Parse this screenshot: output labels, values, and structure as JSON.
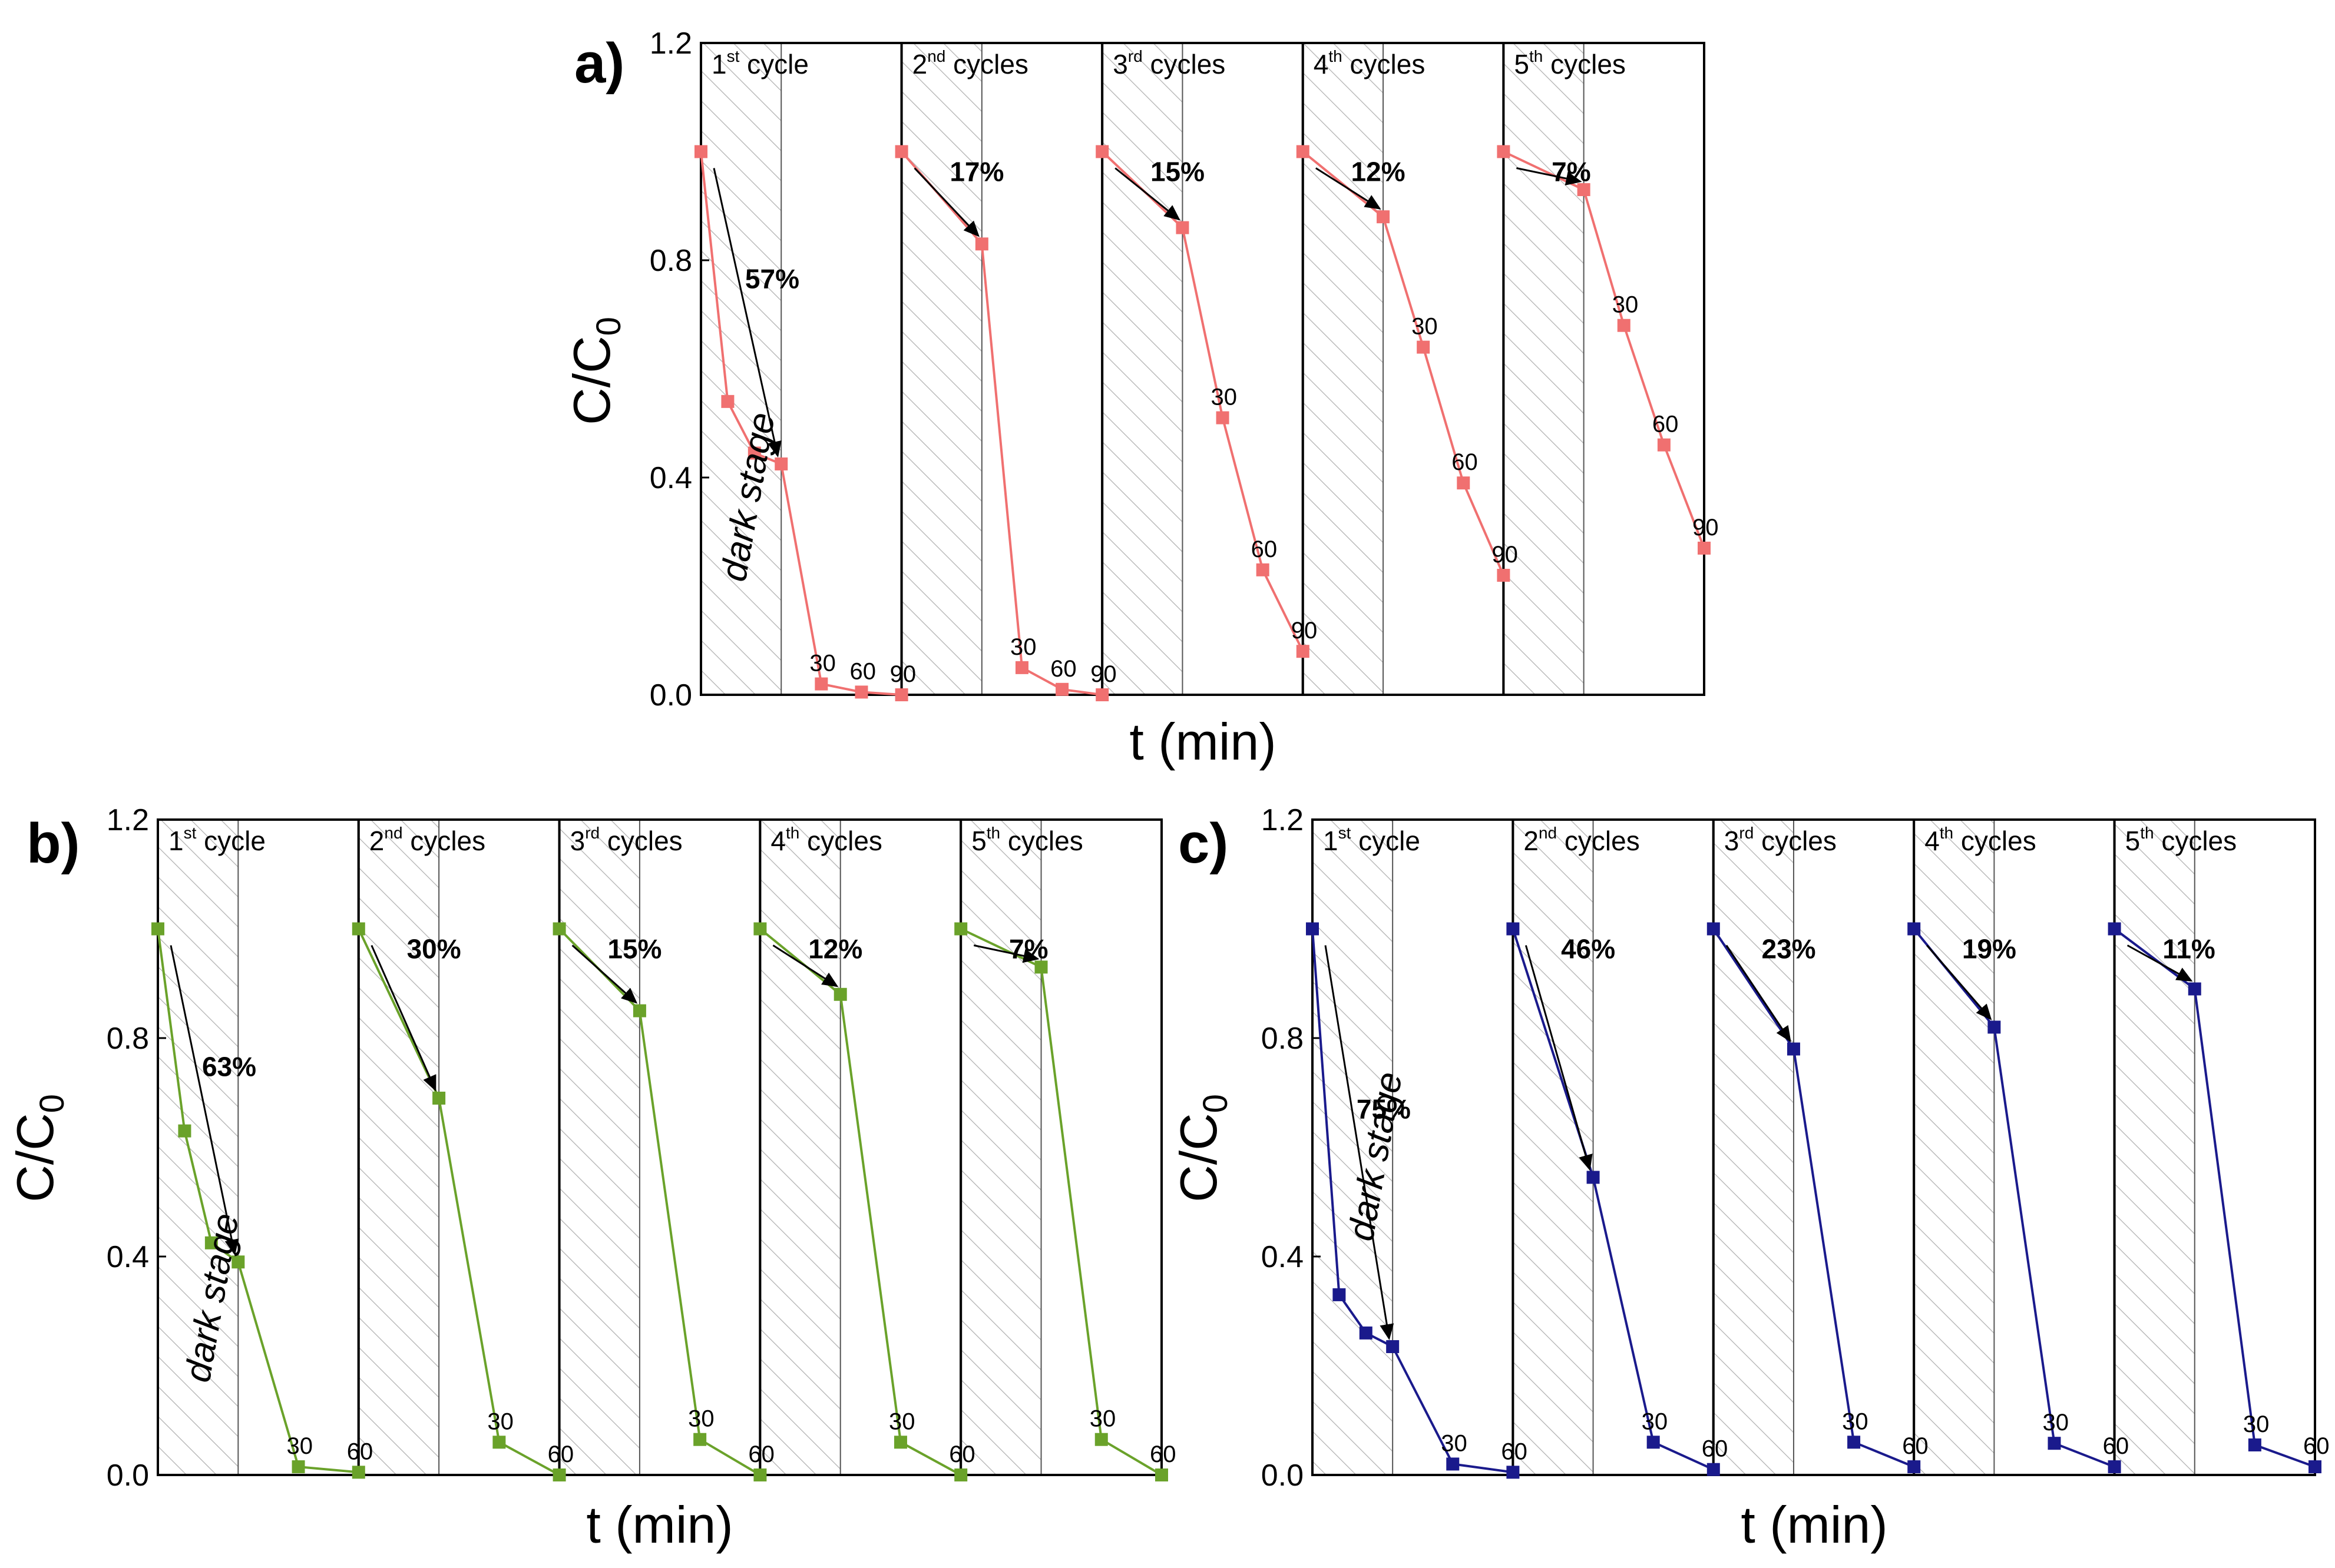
{
  "chart_data": [
    {
      "type": "line",
      "panel_label": "a)",
      "xlabel": "t (min)",
      "ylabel_main": "C/C",
      "ylabel_sub": "0",
      "ylim": [
        0,
        1.2
      ],
      "yticks": [
        "0.0",
        "0.4",
        "0.8",
        "1.2"
      ],
      "color": "#f07070",
      "dark_stage_label": "dark stage",
      "cycles": [
        {
          "num": "1",
          "sup": "st",
          "word": " cycle",
          "points": [
            1.0,
            0.54,
            0.445,
            0.425,
            0.02,
            0.005,
            0.0
          ],
          "removal": "57%",
          "time_labels": [
            "30",
            "60",
            "90"
          ]
        },
        {
          "num": "2",
          "sup": "nd",
          "word": " cycles",
          "points": [
            1.0,
            0.83,
            0.05,
            0.01,
            0.0
          ],
          "removal": "17%",
          "time_labels": [
            "30",
            "60",
            "90"
          ]
        },
        {
          "num": "3",
          "sup": "rd",
          "word": " cycles",
          "points": [
            1.0,
            0.86,
            0.51,
            0.23,
            0.08
          ],
          "removal": "15%",
          "time_labels": [
            "30",
            "60",
            "90"
          ]
        },
        {
          "num": "4",
          "sup": "th",
          "word": " cycles",
          "points": [
            1.0,
            0.88,
            0.64,
            0.39,
            0.22
          ],
          "removal": "12%",
          "time_labels": [
            "30",
            "60",
            "90"
          ]
        },
        {
          "num": "5",
          "sup": "th",
          "word": " cycles",
          "points": [
            1.0,
            0.93,
            0.68,
            0.46,
            0.27
          ],
          "removal": "7%",
          "time_labels": [
            "30",
            "60",
            "90"
          ]
        }
      ]
    },
    {
      "type": "line",
      "panel_label": "b)",
      "xlabel": "t (min)",
      "ylabel_main": "C/C",
      "ylabel_sub": "0",
      "ylim": [
        0,
        1.2
      ],
      "yticks": [
        "0.0",
        "0.4",
        "0.8",
        "1.2"
      ],
      "color": "#6aa22a",
      "dark_stage_label": "dark stage",
      "cycles": [
        {
          "num": "1",
          "sup": "st",
          "word": " cycle",
          "points": [
            1.0,
            0.63,
            0.425,
            0.39,
            0.015,
            0.005
          ],
          "removal": "63%",
          "time_labels": [
            "30",
            "60"
          ]
        },
        {
          "num": "2",
          "sup": "nd",
          "word": " cycles",
          "points": [
            1.0,
            0.69,
            0.06,
            0.0
          ],
          "removal": "30%",
          "time_labels": [
            "30",
            "60"
          ]
        },
        {
          "num": "3",
          "sup": "rd",
          "word": " cycles",
          "points": [
            1.0,
            0.85,
            0.065,
            0.0
          ],
          "removal": "15%",
          "time_labels": [
            "30",
            "60"
          ]
        },
        {
          "num": "4",
          "sup": "th",
          "word": " cycles",
          "points": [
            1.0,
            0.88,
            0.06,
            0.0
          ],
          "removal": "12%",
          "time_labels": [
            "30",
            "60"
          ]
        },
        {
          "num": "5",
          "sup": "th",
          "word": " cycles",
          "points": [
            1.0,
            0.93,
            0.065,
            0.0
          ],
          "removal": "7%",
          "time_labels": [
            "30",
            "60"
          ]
        }
      ]
    },
    {
      "type": "line",
      "panel_label": "c)",
      "xlabel": "t (min)",
      "ylabel_main": "C/C",
      "ylabel_sub": "0",
      "ylim": [
        0,
        1.2
      ],
      "yticks": [
        "0.0",
        "0.4",
        "0.8",
        "1.2"
      ],
      "color": "#1a1a8c",
      "dark_stage_label": "dark stage",
      "cycles": [
        {
          "num": "1",
          "sup": "st",
          "word": " cycle",
          "points": [
            1.0,
            0.33,
            0.26,
            0.235,
            0.02,
            0.005
          ],
          "removal": "75%",
          "time_labels": [
            "30",
            "60"
          ]
        },
        {
          "num": "2",
          "sup": "nd",
          "word": " cycles",
          "points": [
            1.0,
            0.545,
            0.06,
            0.01
          ],
          "removal": "46%",
          "time_labels": [
            "30",
            "60"
          ]
        },
        {
          "num": "3",
          "sup": "rd",
          "word": " cycles",
          "points": [
            1.0,
            0.78,
            0.06,
            0.015
          ],
          "removal": "23%",
          "time_labels": [
            "30",
            "60"
          ]
        },
        {
          "num": "4",
          "sup": "th",
          "word": " cycles",
          "points": [
            1.0,
            0.82,
            0.058,
            0.015
          ],
          "removal": "19%",
          "time_labels": [
            "30",
            "60"
          ]
        },
        {
          "num": "5",
          "sup": "th",
          "word": " cycles",
          "points": [
            1.0,
            0.89,
            0.055,
            0.015
          ],
          "removal": "11%",
          "time_labels": [
            "30",
            "60"
          ]
        }
      ]
    }
  ]
}
